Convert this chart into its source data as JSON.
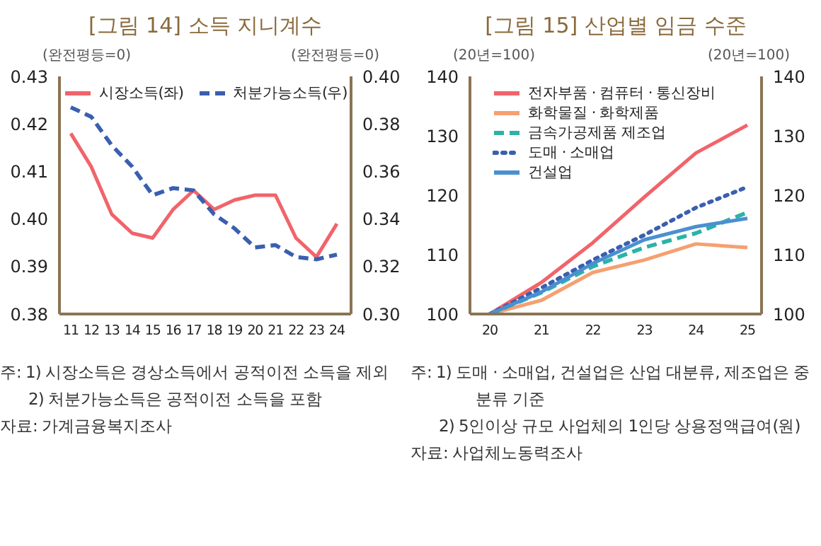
{
  "chart_data": [
    {
      "type": "line",
      "title": "[그림 14] 소득 지니계수",
      "ylabel": "(완전평등=0)",
      "y2label": "(완전평등=0)",
      "categories": [
        "11",
        "12",
        "13",
        "14",
        "15",
        "16",
        "17",
        "18",
        "19",
        "20",
        "21",
        "22",
        "23",
        "24"
      ],
      "series": [
        {
          "name": "시장소득(좌)",
          "color": "#f0646a",
          "line_style": "solid",
          "values": [
            0.418,
            0.411,
            0.401,
            0.397,
            0.396,
            0.402,
            0.406,
            0.402,
            0.404,
            0.405,
            0.405,
            0.396,
            0.392,
            0.399
          ]
        },
        {
          "name": "처분가능소득(우)",
          "color": "#3a5fb0",
          "line_style": "dashed",
          "axis": "y2",
          "values": [
            0.387,
            0.383,
            0.371,
            0.362,
            0.35,
            0.353,
            0.352,
            0.342,
            0.336,
            0.328,
            0.329,
            0.324,
            0.323,
            0.325
          ]
        }
      ],
      "ylim": [
        0.38,
        0.43
      ],
      "yticks": [
        {
          "value": 0.38,
          "label": "0.38"
        },
        {
          "value": 0.39,
          "label": "0.39"
        },
        {
          "value": 0.4,
          "label": "0.40"
        },
        {
          "value": 0.41,
          "label": "0.41"
        },
        {
          "value": 0.42,
          "label": "0.42"
        },
        {
          "value": 0.43,
          "label": "0.43"
        }
      ],
      "y2lim": [
        0.3,
        0.4
      ],
      "y2ticks": [
        {
          "value": 0.3,
          "label": "0.30"
        },
        {
          "value": 0.32,
          "label": "0.32"
        },
        {
          "value": 0.34,
          "label": "0.34"
        },
        {
          "value": 0.36,
          "label": "0.36"
        },
        {
          "value": 0.38,
          "label": "0.38"
        },
        {
          "value": 0.4,
          "label": "0.40"
        }
      ],
      "grid": false,
      "legend": "top",
      "marker": "none",
      "annotations": [
        "주: 1) 시장소득은 경상소득에서 공적이전 소득을 제외",
        "2) 처분가능소득은 공적이전 소득을 포함",
        "자료: 가계금융복지조사"
      ]
    },
    {
      "type": "line",
      "title": "[그림 15] 산업별 임금 수준",
      "ylabel": "(20년=100)",
      "y2label": "(20년=100)",
      "categories": [
        "20",
        "21",
        "22",
        "23",
        "24",
        "25"
      ],
      "series": [
        {
          "name": "전자부품 · 컴퓨터 · 통신장비",
          "color": "#f0646a",
          "line_style": "solid",
          "values": [
            100,
            105.3,
            112.0,
            119.7,
            127.1,
            131.8
          ]
        },
        {
          "name": "화학물질 · 화학제품",
          "color": "#f5a070",
          "line_style": "solid",
          "values": [
            100,
            102.3,
            107.0,
            109.1,
            111.8,
            111.2
          ]
        },
        {
          "name": "금속가공제품 제조업",
          "color": "#2ab3a6",
          "line_style": "dashed",
          "values": [
            100,
            103.6,
            108.0,
            111.2,
            113.6,
            117.1
          ]
        },
        {
          "name": "도매 · 소매업",
          "color": "#3a5fb0",
          "line_style": "dotted",
          "values": [
            100,
            104.4,
            109.1,
            113.3,
            117.9,
            121.4
          ]
        },
        {
          "name": "건설업",
          "color": "#4a90d0",
          "line_style": "solid",
          "values": [
            100,
            103.7,
            108.5,
            112.5,
            114.7,
            116.1
          ]
        }
      ],
      "ylim": [
        100,
        140
      ],
      "yticks": [
        100,
        110,
        120,
        130,
        140
      ],
      "y2lim": [
        100,
        140
      ],
      "y2ticks": [
        100,
        110,
        120,
        130,
        140
      ],
      "grid": false,
      "legend": "top left",
      "marker": "none",
      "annotations": [
        "주: 1) 도매 · 소매업, 건설업은 산업 대분류, 제조업은 중분류 기준",
        "2) 5인이상 규모 사업체의 1인당 상용정액급여(원)",
        "자료: 사업체노동력조사"
      ]
    }
  ]
}
